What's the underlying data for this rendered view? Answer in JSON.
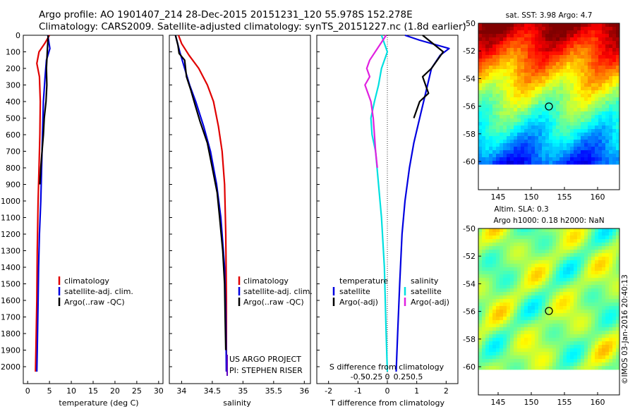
{
  "title_line1": "Argo profile: AO 1901407_214 28-Dec-2015 20151231_120 55.978S 152.278E",
  "title_line2": "Climatology: CARS2009. Satellite-adjusted climatology: synTS_20151227.nc (1.8d earlier)",
  "credit": "©IMOS 03-Jan-2016 20:40:13",
  "colors": {
    "climatology": "#e00000",
    "satellite": "#0000e0",
    "argo": "#000000",
    "cyan": "#00e0e0",
    "magenta": "#e020e0"
  },
  "depth_ticks": [
    "0",
    "100",
    "200",
    "300",
    "400",
    "500",
    "600",
    "700",
    "800",
    "900",
    "1000",
    "1100",
    "1200",
    "1300",
    "1400",
    "1500",
    "1600",
    "1700",
    "1800",
    "1900",
    "2000"
  ],
  "panel_temp": {
    "xlabel": "temperature (deg C)",
    "xticks": [
      "0",
      "5",
      "10",
      "15",
      "20",
      "25",
      "30"
    ],
    "legend": [
      "climatology",
      "satellite-adj. clim.",
      "Argo(..raw -QC)"
    ]
  },
  "panel_sal": {
    "xlabel": "salinity",
    "xticks": [
      "34",
      "34.5",
      "35",
      "35.5",
      "36"
    ],
    "legend": [
      "climatology",
      "satellite-adj. clim.",
      "Argo(..raw -QC)"
    ],
    "project": "US ARGO PROJECT",
    "pi": "PI: STEPHEN RISER"
  },
  "panel_diff": {
    "xlabel_bottom": "T difference from climatology",
    "xticks_bottom": [
      "-2",
      "-1",
      "0",
      "1",
      "2"
    ],
    "xlabel_top": "S difference from climatology",
    "xticks_top": [
      "-0.5",
      "-0.25",
      "0",
      "0.25",
      "0.5"
    ],
    "legend_t_header": "temperature",
    "legend_s_header": "salinity",
    "legend_items": [
      "satellite",
      "Argo(-adj)"
    ]
  },
  "map_sst": {
    "title": "sat. SST: 3.98 Argo: 4.7",
    "yticks": [
      "-50",
      "-52",
      "-54",
      "-56",
      "-58",
      "-60"
    ],
    "xticks": [
      "145",
      "150",
      "155",
      "160"
    ]
  },
  "map_sla": {
    "title1": "Altim. SLA: 0.3",
    "title2": "Argo h1000: 0.18 h2000: NaN",
    "yticks": [
      "-50",
      "-52",
      "-54",
      "-56",
      "-58",
      "-60"
    ],
    "xticks": [
      "145",
      "150",
      "155",
      "160"
    ]
  },
  "chart_data": [
    {
      "type": "line",
      "title": "",
      "xlabel": "temperature (deg C)",
      "ylabel": "",
      "xlim": [
        -1,
        31
      ],
      "ylim": [
        2050,
        0
      ],
      "series": [
        {
          "name": "climatology",
          "x": [
            5.0,
            3.9,
            2.6,
            2.1,
            2.7,
            2.9,
            2.8,
            2.6,
            2.4,
            2.2,
            2.1,
            1.9,
            1.8
          ],
          "y": [
            0,
            50,
            100,
            170,
            250,
            400,
            600,
            800,
            1000,
            1300,
            1600,
            1900,
            2030
          ]
        },
        {
          "name": "satellite-adj. clim.",
          "x": [
            4.6,
            5.1,
            4.3,
            4.0,
            3.6,
            3.4,
            3.2,
            3.0,
            2.7,
            2.5,
            2.4,
            2.2,
            2.1
          ],
          "y": [
            0,
            80,
            150,
            250,
            400,
            600,
            800,
            1000,
            1200,
            1400,
            1600,
            1900,
            2030
          ]
        },
        {
          "name": "Argo(..raw -QC)",
          "x": [
            4.7,
            4.5,
            4.3,
            4.4,
            4.2,
            3.8,
            3.6,
            3.3,
            3.0,
            2.8
          ],
          "y": [
            0,
            100,
            200,
            300,
            400,
            500,
            600,
            700,
            800,
            900
          ]
        }
      ]
    },
    {
      "type": "line",
      "title": "",
      "xlabel": "salinity",
      "ylabel": "",
      "xlim": [
        33.8,
        36.1
      ],
      "ylim": [
        2050,
        0
      ],
      "series": [
        {
          "name": "climatology",
          "x": [
            33.95,
            34.0,
            34.12,
            34.28,
            34.42,
            34.52,
            34.6,
            34.66,
            34.7,
            34.72,
            34.73,
            34.73
          ],
          "y": [
            0,
            50,
            120,
            200,
            300,
            400,
            550,
            700,
            900,
            1200,
            1600,
            2030
          ]
        },
        {
          "name": "satellite-adj. clim.",
          "x": [
            33.9,
            33.97,
            34.05,
            34.13,
            34.23,
            34.36,
            34.47,
            34.57,
            34.64,
            34.7,
            34.72,
            34.73
          ],
          "y": [
            0,
            100,
            200,
            300,
            400,
            550,
            700,
            900,
            1100,
            1400,
            1700,
            2030
          ]
        },
        {
          "name": "Argo(..raw -QC)",
          "x": [
            33.9,
            33.94,
            33.96,
            34.05,
            34.08,
            34.15,
            34.22,
            34.3,
            34.42,
            34.5,
            34.58,
            34.62,
            34.67,
            34.7,
            34.71,
            34.72
          ],
          "y": [
            0,
            60,
            110,
            150,
            250,
            330,
            420,
            520,
            650,
            800,
            950,
            1100,
            1300,
            1500,
            1700,
            1900
          ]
        }
      ]
    },
    {
      "type": "line",
      "title": "",
      "xlabel": "T difference from climatology",
      "ylabel": "",
      "xlim": [
        -2.4,
        2.4
      ],
      "ylim": [
        2050,
        0
      ],
      "series": [
        {
          "name": "temperature satellite",
          "x": [
            0.6,
            1.1,
            2.1,
            1.8,
            1.5,
            1.3,
            1.1,
            0.9,
            0.75,
            0.6,
            0.5,
            0.42,
            0.35,
            0.3
          ],
          "y": [
            0,
            30,
            80,
            120,
            200,
            350,
            500,
            650,
            800,
            1000,
            1200,
            1500,
            1800,
            2030
          ]
        },
        {
          "name": "temperature Argo(-adj)",
          "x": [
            1.2,
            1.9,
            1.5,
            1.2,
            1.4,
            1.1,
            0.9
          ],
          "y": [
            0,
            100,
            200,
            250,
            350,
            400,
            500
          ]
        },
        {
          "name": "salinity satellite",
          "x": [
            -0.1,
            0.0,
            -0.1,
            -0.15,
            -0.22,
            -0.28,
            -0.26,
            -0.2,
            -0.15,
            -0.1,
            -0.05,
            -0.02,
            0.0
          ],
          "y": [
            0,
            100,
            200,
            300,
            400,
            500,
            600,
            700,
            900,
            1100,
            1400,
            1800,
            2030
          ]
        },
        {
          "name": "salinity Argo(-adj)",
          "x": [
            -0.02,
            -0.3,
            -0.35,
            -0.3,
            -0.38,
            -0.28,
            -0.24,
            -0.22,
            -0.2,
            -0.17
          ],
          "y": [
            0,
            150,
            200,
            250,
            300,
            400,
            500,
            600,
            700,
            800
          ]
        }
      ]
    }
  ]
}
